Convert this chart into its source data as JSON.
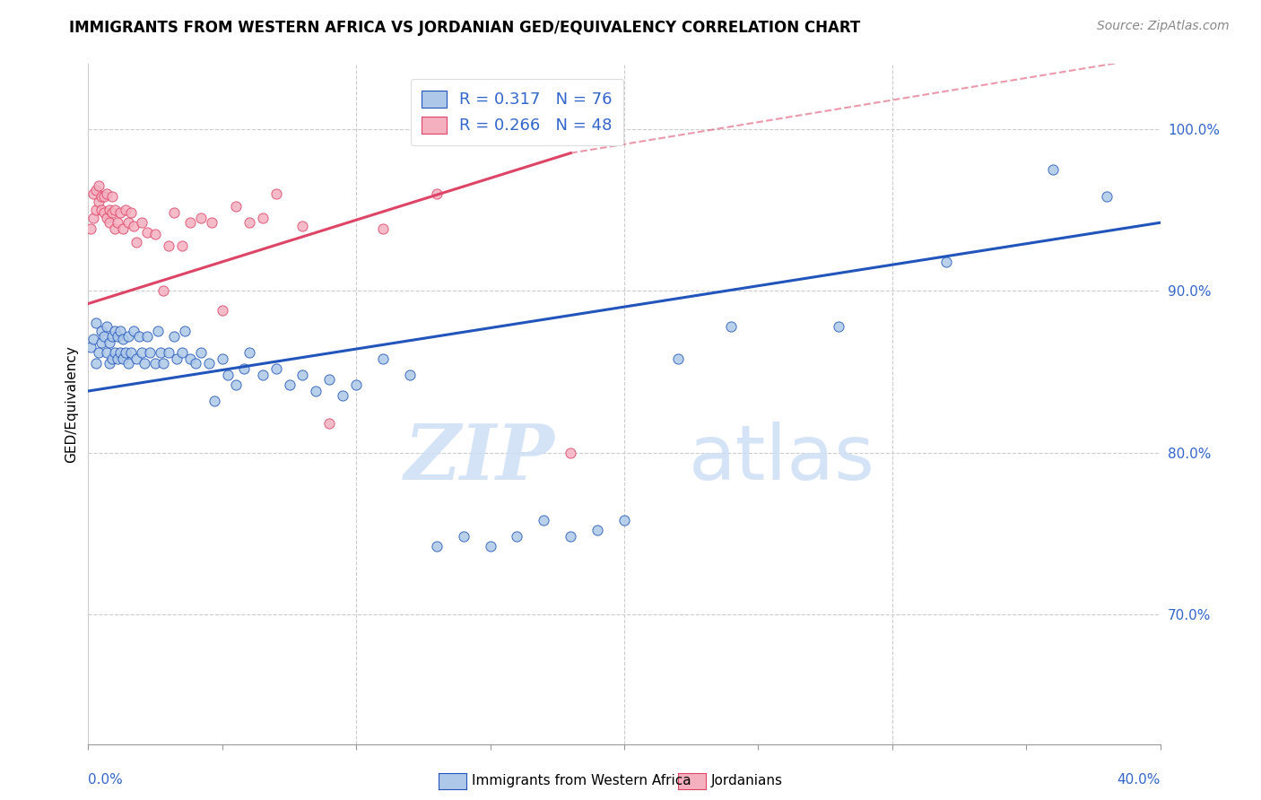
{
  "title": "IMMIGRANTS FROM WESTERN AFRICA VS JORDANIAN GED/EQUIVALENCY CORRELATION CHART",
  "source": "Source: ZipAtlas.com",
  "ylabel": "GED/Equivalency",
  "ytick_labels": [
    "70.0%",
    "80.0%",
    "90.0%",
    "100.0%"
  ],
  "ytick_values": [
    0.7,
    0.8,
    0.9,
    1.0
  ],
  "xlim": [
    0.0,
    0.4
  ],
  "ylim": [
    0.62,
    1.04
  ],
  "blue_R": "0.317",
  "blue_N": "76",
  "pink_R": "0.266",
  "pink_N": "48",
  "legend_label_blue": "Immigrants from Western Africa",
  "legend_label_pink": "Jordanians",
  "blue_color": "#adc8e8",
  "pink_color": "#f5b0c0",
  "blue_line_color": "#2255bb",
  "pink_line_color": "#dd4466",
  "watermark_zip": "ZIP",
  "watermark_atlas": "atlas",
  "title_fontsize": 12,
  "source_fontsize": 10,
  "blue_scatter_x": [
    0.001,
    0.002,
    0.003,
    0.003,
    0.004,
    0.005,
    0.005,
    0.006,
    0.007,
    0.007,
    0.008,
    0.008,
    0.009,
    0.009,
    0.01,
    0.01,
    0.011,
    0.011,
    0.012,
    0.012,
    0.013,
    0.013,
    0.014,
    0.015,
    0.015,
    0.016,
    0.017,
    0.018,
    0.019,
    0.02,
    0.021,
    0.022,
    0.023,
    0.025,
    0.026,
    0.027,
    0.028,
    0.03,
    0.032,
    0.033,
    0.035,
    0.036,
    0.038,
    0.04,
    0.042,
    0.045,
    0.047,
    0.05,
    0.052,
    0.055,
    0.058,
    0.06,
    0.065,
    0.07,
    0.075,
    0.08,
    0.085,
    0.09,
    0.095,
    0.1,
    0.11,
    0.12,
    0.13,
    0.14,
    0.15,
    0.16,
    0.17,
    0.18,
    0.19,
    0.2,
    0.22,
    0.24,
    0.28,
    0.32,
    0.36,
    0.38
  ],
  "blue_scatter_y": [
    0.865,
    0.87,
    0.855,
    0.88,
    0.862,
    0.868,
    0.875,
    0.872,
    0.862,
    0.878,
    0.855,
    0.868,
    0.858,
    0.872,
    0.862,
    0.875,
    0.858,
    0.872,
    0.862,
    0.875,
    0.858,
    0.87,
    0.862,
    0.855,
    0.872,
    0.862,
    0.875,
    0.858,
    0.872,
    0.862,
    0.855,
    0.872,
    0.862,
    0.855,
    0.875,
    0.862,
    0.855,
    0.862,
    0.872,
    0.858,
    0.862,
    0.875,
    0.858,
    0.855,
    0.862,
    0.855,
    0.832,
    0.858,
    0.848,
    0.842,
    0.852,
    0.862,
    0.848,
    0.852,
    0.842,
    0.848,
    0.838,
    0.845,
    0.835,
    0.842,
    0.858,
    0.848,
    0.742,
    0.748,
    0.742,
    0.748,
    0.758,
    0.748,
    0.752,
    0.758,
    0.858,
    0.878,
    0.878,
    0.918,
    0.975,
    0.958
  ],
  "pink_scatter_x": [
    0.001,
    0.002,
    0.002,
    0.003,
    0.003,
    0.004,
    0.004,
    0.005,
    0.005,
    0.006,
    0.006,
    0.007,
    0.007,
    0.008,
    0.008,
    0.009,
    0.009,
    0.01,
    0.01,
    0.011,
    0.012,
    0.013,
    0.014,
    0.015,
    0.016,
    0.017,
    0.018,
    0.02,
    0.022,
    0.025,
    0.028,
    0.03,
    0.032,
    0.035,
    0.038,
    0.042,
    0.046,
    0.05,
    0.055,
    0.06,
    0.065,
    0.07,
    0.08,
    0.09,
    0.11,
    0.13,
    0.155,
    0.18
  ],
  "pink_scatter_y": [
    0.938,
    0.945,
    0.96,
    0.95,
    0.962,
    0.955,
    0.965,
    0.95,
    0.958,
    0.948,
    0.958,
    0.945,
    0.96,
    0.95,
    0.942,
    0.958,
    0.948,
    0.938,
    0.95,
    0.942,
    0.948,
    0.938,
    0.95,
    0.942,
    0.948,
    0.94,
    0.93,
    0.942,
    0.936,
    0.935,
    0.9,
    0.928,
    0.948,
    0.928,
    0.942,
    0.945,
    0.942,
    0.888,
    0.952,
    0.942,
    0.945,
    0.96,
    0.94,
    0.818,
    0.938,
    0.96,
    1.0,
    0.8
  ],
  "blue_trendline": [
    0.0,
    0.4,
    0.838,
    0.942
  ],
  "pink_trendline_solid": [
    0.0,
    0.18,
    0.892,
    0.985
  ],
  "pink_trendline_dashed": [
    0.18,
    0.4,
    0.985,
    1.045
  ]
}
